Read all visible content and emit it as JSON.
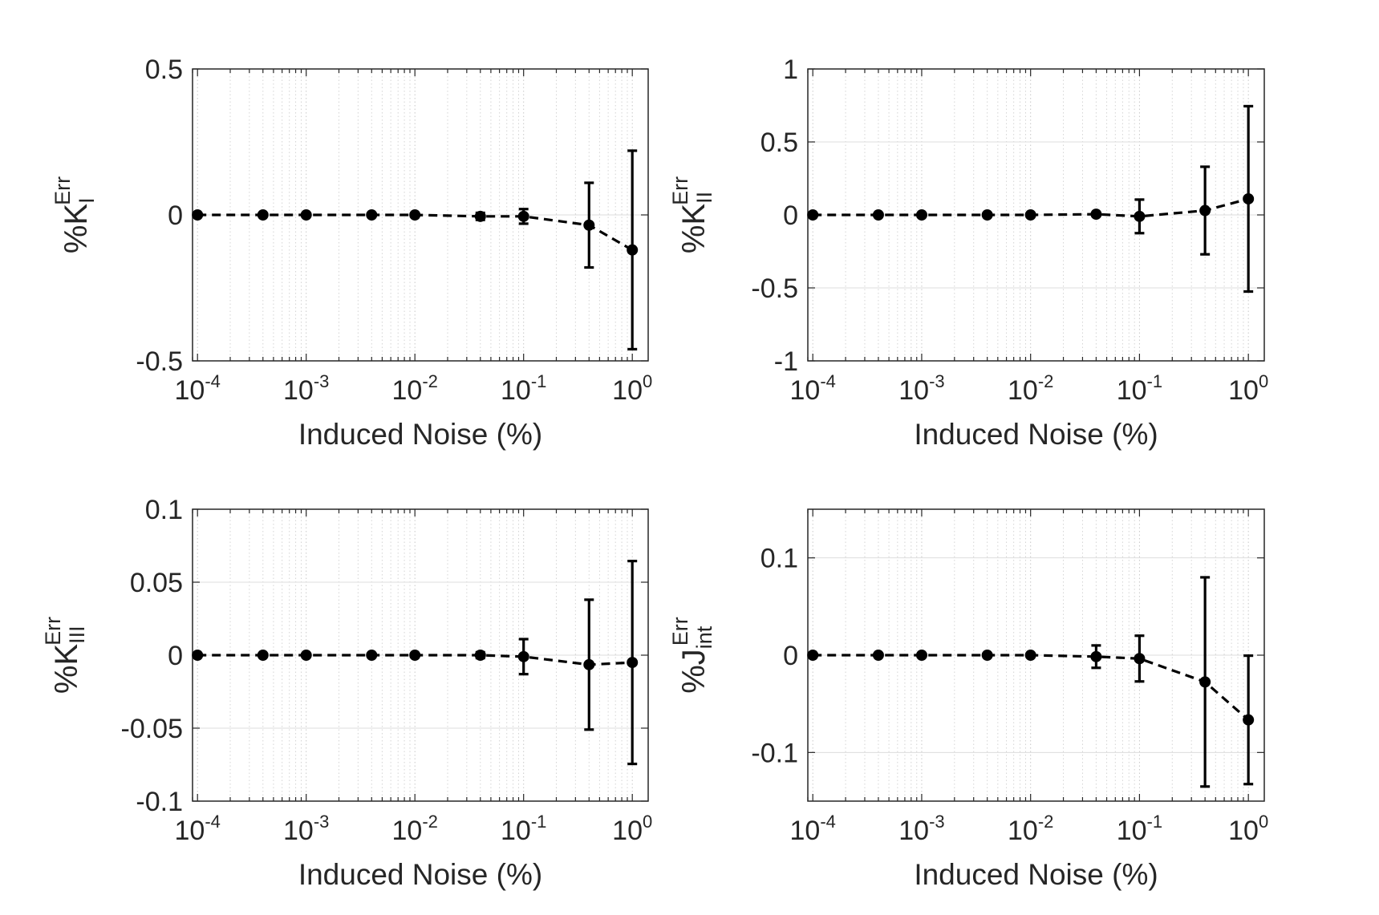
{
  "colors": {
    "line": "#000000",
    "axis": "#262626",
    "grid_major": "#dddddd",
    "grid_minor": "#d4d4d4",
    "background": "#ffffff"
  },
  "chart_data": [
    {
      "type": "line",
      "xlabel": "Induced Noise (%)",
      "ylabel": {
        "base": "%K",
        "sub": "I",
        "sup": "Err"
      },
      "xscale": "log",
      "xlim": [
        9e-05,
        1.4
      ],
      "xticks": [
        {
          "v": 0.0001,
          "exp": "-4"
        },
        {
          "v": 0.001,
          "exp": "-3"
        },
        {
          "v": 0.01,
          "exp": "-2"
        },
        {
          "v": 0.1,
          "exp": "-1"
        },
        {
          "v": 1,
          "exp": "0"
        }
      ],
      "ylim": [
        -0.5,
        0.5
      ],
      "yticks": [
        {
          "v": 0.5,
          "label": "0.5"
        },
        {
          "v": 0,
          "label": "0"
        },
        {
          "v": -0.5,
          "label": "-0.5"
        }
      ],
      "grid": "major y, major+minor x (dotted)",
      "line_style": "dashed",
      "marker": "filled circle",
      "x": [
        0.0001,
        0.0004,
        0.001,
        0.004,
        0.01,
        0.04,
        0.1,
        0.4,
        1
      ],
      "y": [
        0,
        0,
        0,
        0,
        0,
        -0.005,
        -0.005,
        -0.035,
        -0.12
      ],
      "err": [
        0,
        0,
        0,
        0,
        0,
        0.012,
        0.025,
        0.145,
        0.34
      ]
    },
    {
      "type": "line",
      "xlabel": "Induced Noise (%)",
      "ylabel": {
        "base": "%K",
        "sub": "II",
        "sup": "Err"
      },
      "xscale": "log",
      "xlim": [
        9e-05,
        1.4
      ],
      "xticks": [
        {
          "v": 0.0001,
          "exp": "-4"
        },
        {
          "v": 0.001,
          "exp": "-3"
        },
        {
          "v": 0.01,
          "exp": "-2"
        },
        {
          "v": 0.1,
          "exp": "-1"
        },
        {
          "v": 1,
          "exp": "0"
        }
      ],
      "ylim": [
        -1,
        1
      ],
      "yticks": [
        {
          "v": 1,
          "label": "1"
        },
        {
          "v": 0.5,
          "label": "0.5"
        },
        {
          "v": 0,
          "label": "0"
        },
        {
          "v": -0.5,
          "label": "-0.5"
        },
        {
          "v": -1,
          "label": "-1"
        }
      ],
      "grid": "major y, major+minor x (dotted)",
      "line_style": "dashed",
      "marker": "filled circle",
      "x": [
        0.0001,
        0.0004,
        0.001,
        0.004,
        0.01,
        0.04,
        0.1,
        0.4,
        1
      ],
      "y": [
        0,
        0,
        0,
        0,
        0,
        0.005,
        -0.01,
        0.03,
        0.11
      ],
      "err": [
        0,
        0,
        0,
        0,
        0,
        0.008,
        0.115,
        0.3,
        0.635
      ]
    },
    {
      "type": "line",
      "xlabel": "Induced Noise (%)",
      "ylabel": {
        "base": "%K",
        "sub": "III",
        "sup": "Err"
      },
      "xscale": "log",
      "xlim": [
        9e-05,
        1.4
      ],
      "xticks": [
        {
          "v": 0.0001,
          "exp": "-4"
        },
        {
          "v": 0.001,
          "exp": "-3"
        },
        {
          "v": 0.01,
          "exp": "-2"
        },
        {
          "v": 0.1,
          "exp": "-1"
        },
        {
          "v": 1,
          "exp": "0"
        }
      ],
      "ylim": [
        -0.1,
        0.1
      ],
      "yticks": [
        {
          "v": 0.1,
          "label": "0.1"
        },
        {
          "v": 0.05,
          "label": "0.05"
        },
        {
          "v": 0,
          "label": "0"
        },
        {
          "v": -0.05,
          "label": "-0.05"
        },
        {
          "v": -0.1,
          "label": "-0.1"
        }
      ],
      "grid": "major y, major+minor x (dotted)",
      "line_style": "dashed",
      "marker": "filled circle",
      "x": [
        0.0001,
        0.0004,
        0.001,
        0.004,
        0.01,
        0.04,
        0.1,
        0.4,
        1
      ],
      "y": [
        0,
        0,
        0,
        0,
        0,
        0,
        -0.001,
        -0.0065,
        -0.005
      ],
      "err": [
        0,
        0,
        0,
        0,
        0,
        0.002,
        0.012,
        0.0445,
        0.0695
      ]
    },
    {
      "type": "line",
      "xlabel": "Induced Noise (%)",
      "ylabel": {
        "base": "%J",
        "sub": "int",
        "sup": "Err"
      },
      "xscale": "log",
      "xlim": [
        9e-05,
        1.4
      ],
      "xticks": [
        {
          "v": 0.0001,
          "exp": "-4"
        },
        {
          "v": 0.001,
          "exp": "-3"
        },
        {
          "v": 0.01,
          "exp": "-2"
        },
        {
          "v": 0.1,
          "exp": "-1"
        },
        {
          "v": 1,
          "exp": "0"
        }
      ],
      "ylim": [
        -0.15,
        0.15
      ],
      "yticks": [
        {
          "v": 0.1,
          "label": "0.1"
        },
        {
          "v": 0,
          "label": "0"
        },
        {
          "v": -0.1,
          "label": "-0.1"
        }
      ],
      "grid": "major y, major+minor x (dotted)",
      "line_style": "dashed",
      "marker": "filled circle",
      "x": [
        0.0001,
        0.0004,
        0.001,
        0.004,
        0.01,
        0.04,
        0.1,
        0.4,
        1
      ],
      "y": [
        0,
        0,
        0,
        0,
        0,
        -0.0015,
        -0.0035,
        -0.0275,
        -0.0665
      ],
      "err": [
        0,
        0,
        0,
        0,
        0,
        0.0115,
        0.0235,
        0.1075,
        0.066
      ]
    }
  ]
}
